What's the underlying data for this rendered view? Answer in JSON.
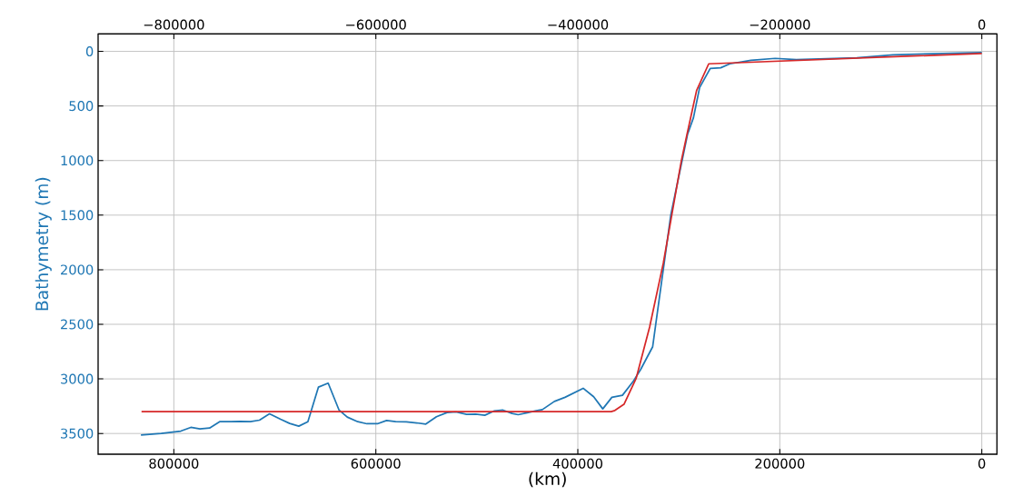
{
  "chart_data": {
    "type": "line",
    "xlabel": "(km)",
    "ylabel": "Bathymetry (m)",
    "grid": true,
    "xlim": [
      875000,
      -15000
    ],
    "xticks": [
      800000,
      600000,
      400000,
      200000,
      0
    ],
    "x2lim": [
      -875000,
      15000
    ],
    "x2ticks": [
      {
        "value": -800000,
        "label": "−800000"
      },
      {
        "value": -600000,
        "label": "−600000"
      },
      {
        "value": -400000,
        "label": "−400000"
      },
      {
        "value": -200000,
        "label": "−200000"
      },
      0
    ],
    "ylim": [
      3690,
      -160
    ],
    "yticks": [
      0,
      500,
      1000,
      1500,
      2000,
      2500,
      3000,
      3500
    ],
    "series": [
      {
        "color": "#1f77b4",
        "x": [
          832600,
          812500,
          793100,
          783200,
          774200,
          764600,
          754700,
          743700,
          734700,
          724200,
          715200,
          705300,
          694300,
          685300,
          676300,
          667300,
          656800,
          647200,
          636400,
          628300,
          617900,
          608900,
          598400,
          589400,
          580400,
          569900,
          559500,
          550500,
          540000,
          529500,
          520500,
          510100,
          501100,
          492100,
          483100,
          474100,
          465100,
          459100,
          450100,
          441200,
          435100,
          423200,
          412700,
          394700,
          384300,
          375300,
          366300,
          355800,
          345300,
          337800,
          325900,
          322800,
          307900,
          291400,
          285500,
          279400,
          268900,
          258500,
          249500,
          228500,
          204600,
          183600,
          123700,
          87800,
          0
        ],
        "values": [
          3514,
          3500,
          3478,
          3444,
          3458,
          3450,
          3392,
          3392,
          3389,
          3392,
          3378,
          3320,
          3370,
          3408,
          3433,
          3392,
          3075,
          3039,
          3286,
          3350,
          3392,
          3411,
          3411,
          3381,
          3392,
          3394,
          3403,
          3414,
          3347,
          3308,
          3303,
          3325,
          3322,
          3333,
          3294,
          3286,
          3317,
          3328,
          3311,
          3292,
          3281,
          3206,
          3169,
          3086,
          3164,
          3275,
          3169,
          3150,
          3025,
          2914,
          2706,
          2497,
          1497,
          761,
          608,
          331,
          156,
          150,
          114,
          81,
          64,
          75,
          58,
          31,
          11
        ]
      },
      {
        "color": "#d62728",
        "x": [
          832000,
          367000,
          363300,
          354300,
          342300,
          328900,
          315400,
          297400,
          291900,
          282400,
          270400,
          0
        ],
        "values": [
          3300,
          3300,
          3289,
          3233,
          2997,
          2525,
          1942,
          997,
          761,
          358,
          114,
          19
        ]
      }
    ]
  }
}
